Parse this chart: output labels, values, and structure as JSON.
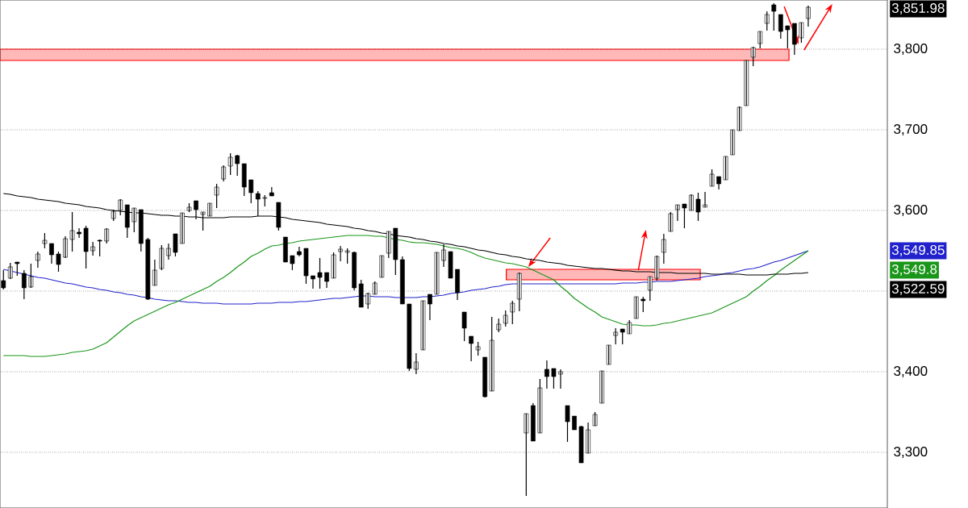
{
  "chart_data": {
    "type": "candlestick",
    "categories": [
      null,
      null,
      null,
      null,
      null,
      null,
      null,
      null,
      null,
      null,
      null,
      null,
      null,
      null,
      null,
      null,
      null,
      null,
      null,
      null,
      null,
      null,
      null,
      null,
      null,
      null,
      null,
      null,
      null,
      null,
      null,
      null,
      null,
      null,
      null,
      null,
      null,
      null,
      null,
      null,
      null,
      null,
      null,
      null,
      null,
      null,
      null,
      null,
      null,
      null,
      null,
      null,
      null,
      null,
      null,
      null,
      null,
      null,
      null,
      null,
      null,
      null,
      null,
      null,
      null,
      null,
      null,
      null,
      null,
      null,
      null,
      null,
      null,
      null,
      null,
      null,
      null,
      null,
      null,
      null,
      null,
      null,
      null,
      null,
      null,
      null,
      null,
      null,
      null,
      null,
      null,
      null,
      null,
      null,
      null,
      null,
      null,
      null,
      null,
      null,
      null,
      null,
      null,
      null,
      null,
      null,
      null,
      null,
      null,
      null,
      null,
      null,
      null,
      null,
      null,
      null,
      null,
      null,
      null,
      null,
      null,
      null,
      null,
      null,
      null,
      null,
      null,
      null,
      null
    ],
    "ohlc": [
      [
        3513,
        3526,
        3502,
        3504
      ],
      [
        3516,
        3535,
        3515,
        3530
      ],
      [
        3536,
        3536,
        3519,
        3534
      ],
      [
        3522,
        3526,
        3490,
        3504
      ],
      [
        3505,
        3534,
        3504,
        3518
      ],
      [
        3538,
        3549,
        3529,
        3546
      ],
      [
        3559,
        3572,
        3553,
        3563
      ],
      [
        3559,
        3559,
        3534,
        3545
      ],
      [
        3546,
        3549,
        3524,
        3533
      ],
      [
        3542,
        3568,
        3541,
        3565
      ],
      [
        3564,
        3598,
        3549,
        3575
      ],
      [
        3573,
        3578,
        3566,
        3571
      ],
      [
        3578,
        3581,
        3528,
        3549
      ],
      [
        3550,
        3561,
        3544,
        3555
      ],
      [
        3563,
        3564,
        3543,
        3562
      ],
      [
        3562,
        3578,
        3559,
        3577
      ],
      [
        3590,
        3601,
        3587,
        3599
      ],
      [
        3600,
        3614,
        3594,
        3613
      ],
      [
        3607,
        3607,
        3566,
        3579
      ],
      [
        3586,
        3603,
        3573,
        3603
      ],
      [
        3601,
        3601,
        3549,
        3559
      ],
      [
        3564,
        3566,
        3489,
        3490
      ],
      [
        3507,
        3539,
        3507,
        3526
      ],
      [
        3528,
        3557,
        3526,
        3553
      ],
      [
        3544,
        3559,
        3539,
        3553
      ],
      [
        3571,
        3571,
        3543,
        3548
      ],
      [
        3559,
        3597,
        3559,
        3597
      ],
      [
        3600,
        3609,
        3598,
        3604
      ],
      [
        3612,
        3612,
        3589,
        3601
      ],
      [
        3595,
        3598,
        3575,
        3598
      ],
      [
        3593,
        3609,
        3593,
        3609
      ],
      [
        3619,
        3633,
        3603,
        3629
      ],
      [
        3639,
        3656,
        3636,
        3654
      ],
      [
        3655,
        3671,
        3644,
        3666
      ],
      [
        3668,
        3669,
        3643,
        3658
      ],
      [
        3658,
        3658,
        3618,
        3629
      ],
      [
        3638,
        3638,
        3609,
        3622
      ],
      [
        3621,
        3624,
        3593,
        3614
      ],
      [
        3615,
        3619,
        3605,
        3616
      ],
      [
        3622,
        3629,
        3618,
        3618
      ],
      [
        3610,
        3610,
        3575,
        3579
      ],
      [
        3567,
        3567,
        3536,
        3536
      ],
      [
        3544,
        3544,
        3526,
        3534
      ],
      [
        3549,
        3555,
        3543,
        3545
      ],
      [
        3553,
        3553,
        3509,
        3519
      ],
      [
        3519,
        3519,
        3503,
        3515
      ],
      [
        3523,
        3541,
        3503,
        3517
      ],
      [
        3523,
        3523,
        3504,
        3512
      ],
      [
        3516,
        3548,
        3516,
        3545
      ],
      [
        3549,
        3556,
        3537,
        3552
      ],
      [
        3548,
        3553,
        3534,
        3550
      ],
      [
        3548,
        3549,
        3501,
        3504
      ],
      [
        3509,
        3514,
        3480,
        3480
      ],
      [
        3484,
        3498,
        3478,
        3497
      ],
      [
        3496,
        3512,
        3496,
        3510
      ],
      [
        3517,
        3544,
        3517,
        3544
      ],
      [
        3547,
        3574,
        3541,
        3574
      ],
      [
        3578,
        3578,
        3520,
        3539
      ],
      [
        3539,
        3543,
        3484,
        3484
      ],
      [
        3484,
        3484,
        3401,
        3404
      ],
      [
        3403,
        3423,
        3397,
        3412
      ],
      [
        3427,
        3488,
        3427,
        3488
      ],
      [
        3496,
        3496,
        3464,
        3484
      ],
      [
        3496,
        3548,
        3496,
        3548
      ],
      [
        3538,
        3558,
        3530,
        3551
      ],
      [
        3549,
        3549,
        3516,
        3516
      ],
      [
        3527,
        3527,
        3489,
        3498
      ],
      [
        3474,
        3474,
        3438,
        3454
      ],
      [
        3444,
        3444,
        3413,
        3435
      ],
      [
        3427,
        3437,
        3420,
        3431
      ],
      [
        3418,
        3418,
        3368,
        3369
      ],
      [
        3376,
        3468,
        3376,
        3439
      ],
      [
        3452,
        3466,
        3449,
        3459
      ],
      [
        3460,
        3476,
        3456,
        3470
      ],
      [
        3474,
        3488,
        3459,
        3485
      ],
      [
        3490,
        3523,
        3475,
        3522
      ],
      [
        3324,
        3348,
        3246,
        3348
      ],
      [
        3358,
        3361,
        3314,
        3314
      ],
      [
        3324,
        3391,
        3324,
        3380
      ],
      [
        3403,
        3414,
        3379,
        3394
      ],
      [
        3404,
        3404,
        3379,
        3394
      ],
      [
        3397,
        3403,
        3379,
        3400
      ],
      [
        3358,
        3358,
        3313,
        3338
      ],
      [
        3345,
        3345,
        3328,
        3328
      ],
      [
        3332,
        3333,
        3287,
        3287
      ],
      [
        3299,
        3337,
        3299,
        3328
      ],
      [
        3333,
        3350,
        3333,
        3347
      ],
      [
        3361,
        3401,
        3361,
        3401
      ],
      [
        3409,
        3433,
        3409,
        3433
      ],
      [
        3445,
        3454,
        3434,
        3449
      ],
      [
        3453,
        3453,
        3434,
        3449
      ],
      [
        3447,
        3464,
        3447,
        3461
      ],
      [
        3466,
        3493,
        3466,
        3493
      ],
      [
        3490,
        3493,
        3474,
        3488
      ],
      [
        3501,
        3518,
        3488,
        3518
      ],
      [
        3516,
        3544,
        3513,
        3543
      ],
      [
        3548,
        3571,
        3534,
        3564
      ],
      [
        3574,
        3598,
        3574,
        3596
      ],
      [
        3601,
        3607,
        3587,
        3607
      ],
      [
        3608,
        3608,
        3578,
        3603
      ],
      [
        3600,
        3620,
        3600,
        3619
      ],
      [
        3614,
        3622,
        3587,
        3598
      ],
      [
        3604,
        3623,
        3604,
        3607
      ],
      [
        3630,
        3651,
        3630,
        3645
      ],
      [
        3642,
        3642,
        3626,
        3633
      ],
      [
        3638,
        3667,
        3638,
        3667
      ],
      [
        3669,
        3700,
        3669,
        3700
      ],
      [
        3699,
        3729,
        3699,
        3728
      ],
      [
        3730,
        3786,
        3730,
        3786
      ],
      [
        3790,
        3803,
        3779,
        3802
      ],
      [
        3807,
        3822,
        3801,
        3822
      ],
      [
        3832,
        3847,
        3823,
        3843
      ],
      [
        3855,
        3857,
        3823,
        3847
      ],
      [
        3843,
        3843,
        3813,
        3822
      ],
      [
        3829,
        3829,
        3801,
        3824
      ],
      [
        3832,
        3832,
        3793,
        3806
      ],
      [
        3814,
        3833,
        3808,
        3833
      ],
      [
        3838,
        3854,
        3828,
        3852
      ],
      null,
      null,
      null,
      null,
      null,
      null,
      null,
      null,
      null,
      null,
      null
    ],
    "series": [
      {
        "type": "line",
        "color": "#2222cc",
        "values": [
          3527,
          3525,
          3523,
          3521,
          3519,
          3517,
          3516,
          3514,
          3512,
          3510,
          3509,
          3507,
          3505,
          3504,
          3502,
          3501,
          3499,
          3498,
          3496,
          3495,
          3493,
          3492,
          3490,
          3489,
          3488,
          3488,
          3487,
          3486,
          3486,
          3485,
          3485,
          3485,
          3484,
          3484,
          3484,
          3484,
          3484,
          3485,
          3485,
          3485,
          3486,
          3486,
          3486,
          3487,
          3487,
          3488,
          3489,
          3490,
          3491,
          3491,
          3492,
          3493,
          3494,
          3494,
          3493,
          3493,
          3493,
          3492,
          3492,
          3492,
          3492,
          3493,
          3493,
          3494,
          3495,
          3497,
          3498,
          3499,
          3501,
          3502,
          3503,
          3505,
          3506,
          3508,
          3509,
          3509,
          3509,
          3509,
          3509,
          3509,
          3509,
          3509,
          3509,
          3509,
          3509,
          3509,
          3509,
          3509,
          3509,
          3509,
          3510,
          3510,
          3510,
          3511,
          3511,
          3512,
          3512,
          3512,
          3513,
          3514,
          3515,
          3516,
          3518,
          3519,
          3520,
          3522,
          3523,
          3525,
          3527,
          3528,
          3530,
          3533,
          3536,
          3538,
          3541,
          3544,
          3547,
          3550,
          null,
          null,
          null,
          null,
          null,
          null,
          null,
          null,
          null,
          null,
          null
        ]
      },
      {
        "type": "line",
        "color": "#1a961a",
        "values": [
          3420,
          3420,
          3420,
          3420,
          3419,
          3419,
          3419,
          3420,
          3421,
          3422,
          3424,
          3425,
          3426,
          3428,
          3432,
          3436,
          3443,
          3450,
          3457,
          3463,
          3467,
          3471,
          3475,
          3479,
          3483,
          3486,
          3490,
          3494,
          3498,
          3502,
          3506,
          3512,
          3517,
          3523,
          3530,
          3536,
          3543,
          3547,
          3552,
          3556,
          3557,
          3559,
          3560,
          3562,
          3563,
          3564,
          3565,
          3566,
          3567,
          3568,
          3569,
          3569,
          3569,
          3569,
          3568,
          3568,
          3566,
          3564,
          3563,
          3561,
          3560,
          3560,
          3559,
          3558,
          3556,
          3554,
          3553,
          3551,
          3548,
          3544,
          3541,
          3539,
          3537,
          3535,
          3534,
          3532,
          3530,
          3526,
          3522,
          3518,
          3514,
          3506,
          3499,
          3491,
          3485,
          3479,
          3474,
          3468,
          3465,
          3462,
          3459,
          3458,
          3458,
          3457,
          3457,
          3458,
          3460,
          3461,
          3463,
          3465,
          3467,
          3469,
          3471,
          3473,
          3477,
          3481,
          3485,
          3489,
          3493,
          3500,
          3506,
          3513,
          3519,
          3526,
          3532,
          3538,
          3544,
          3550,
          null,
          null,
          null,
          null,
          null,
          null,
          null,
          null,
          null,
          null,
          null
        ]
      },
      {
        "type": "line",
        "color": "#000000",
        "values": [
          3621,
          3620,
          3618,
          3617,
          3616,
          3614,
          3613,
          3612,
          3611,
          3609,
          3608,
          3607,
          3605,
          3604,
          3603,
          3601,
          3600,
          3599,
          3598,
          3597,
          3597,
          3596,
          3595,
          3594,
          3594,
          3593,
          3593,
          3592,
          3592,
          3591,
          3591,
          3591,
          3591,
          3592,
          3592,
          3592,
          3592,
          3593,
          3593,
          3593,
          3592,
          3591,
          3589,
          3588,
          3587,
          3586,
          3585,
          3583,
          3582,
          3581,
          3580,
          3578,
          3577,
          3575,
          3574,
          3572,
          3571,
          3569,
          3568,
          3567,
          3565,
          3564,
          3562,
          3561,
          3559,
          3558,
          3556,
          3555,
          3553,
          3551,
          3550,
          3548,
          3546,
          3545,
          3543,
          3542,
          3540,
          3539,
          3538,
          3536,
          3535,
          3534,
          3532,
          3531,
          3530,
          3529,
          3528,
          3528,
          3527,
          3526,
          3525,
          3525,
          3524,
          3524,
          3524,
          3523,
          3523,
          3523,
          3522,
          3522,
          3522,
          3522,
          3522,
          3521,
          3521,
          3521,
          3521,
          3521,
          3520,
          3520,
          3520,
          3520,
          3521,
          3521,
          3521,
          3522,
          3522,
          3523,
          null,
          null,
          null,
          null,
          null,
          null,
          null,
          null,
          null,
          null,
          null
        ]
      }
    ],
    "annotations": [
      "3,851.98",
      "3,549.85",
      "3,549.8",
      "3,522.59"
    ],
    "ylim": [
      3231,
      3861
    ],
    "yticks": [
      {
        "value": 3300,
        "label": "3,300"
      },
      {
        "value": 3400,
        "label": "3,400"
      },
      {
        "value": 3500,
        "label": null
      },
      {
        "value": 3600,
        "label": "3,600"
      },
      {
        "value": 3700,
        "label": "3,700"
      },
      {
        "value": 3800,
        "label": "3,800"
      }
    ],
    "grid": "y",
    "tick_labels": "y"
  }
}
